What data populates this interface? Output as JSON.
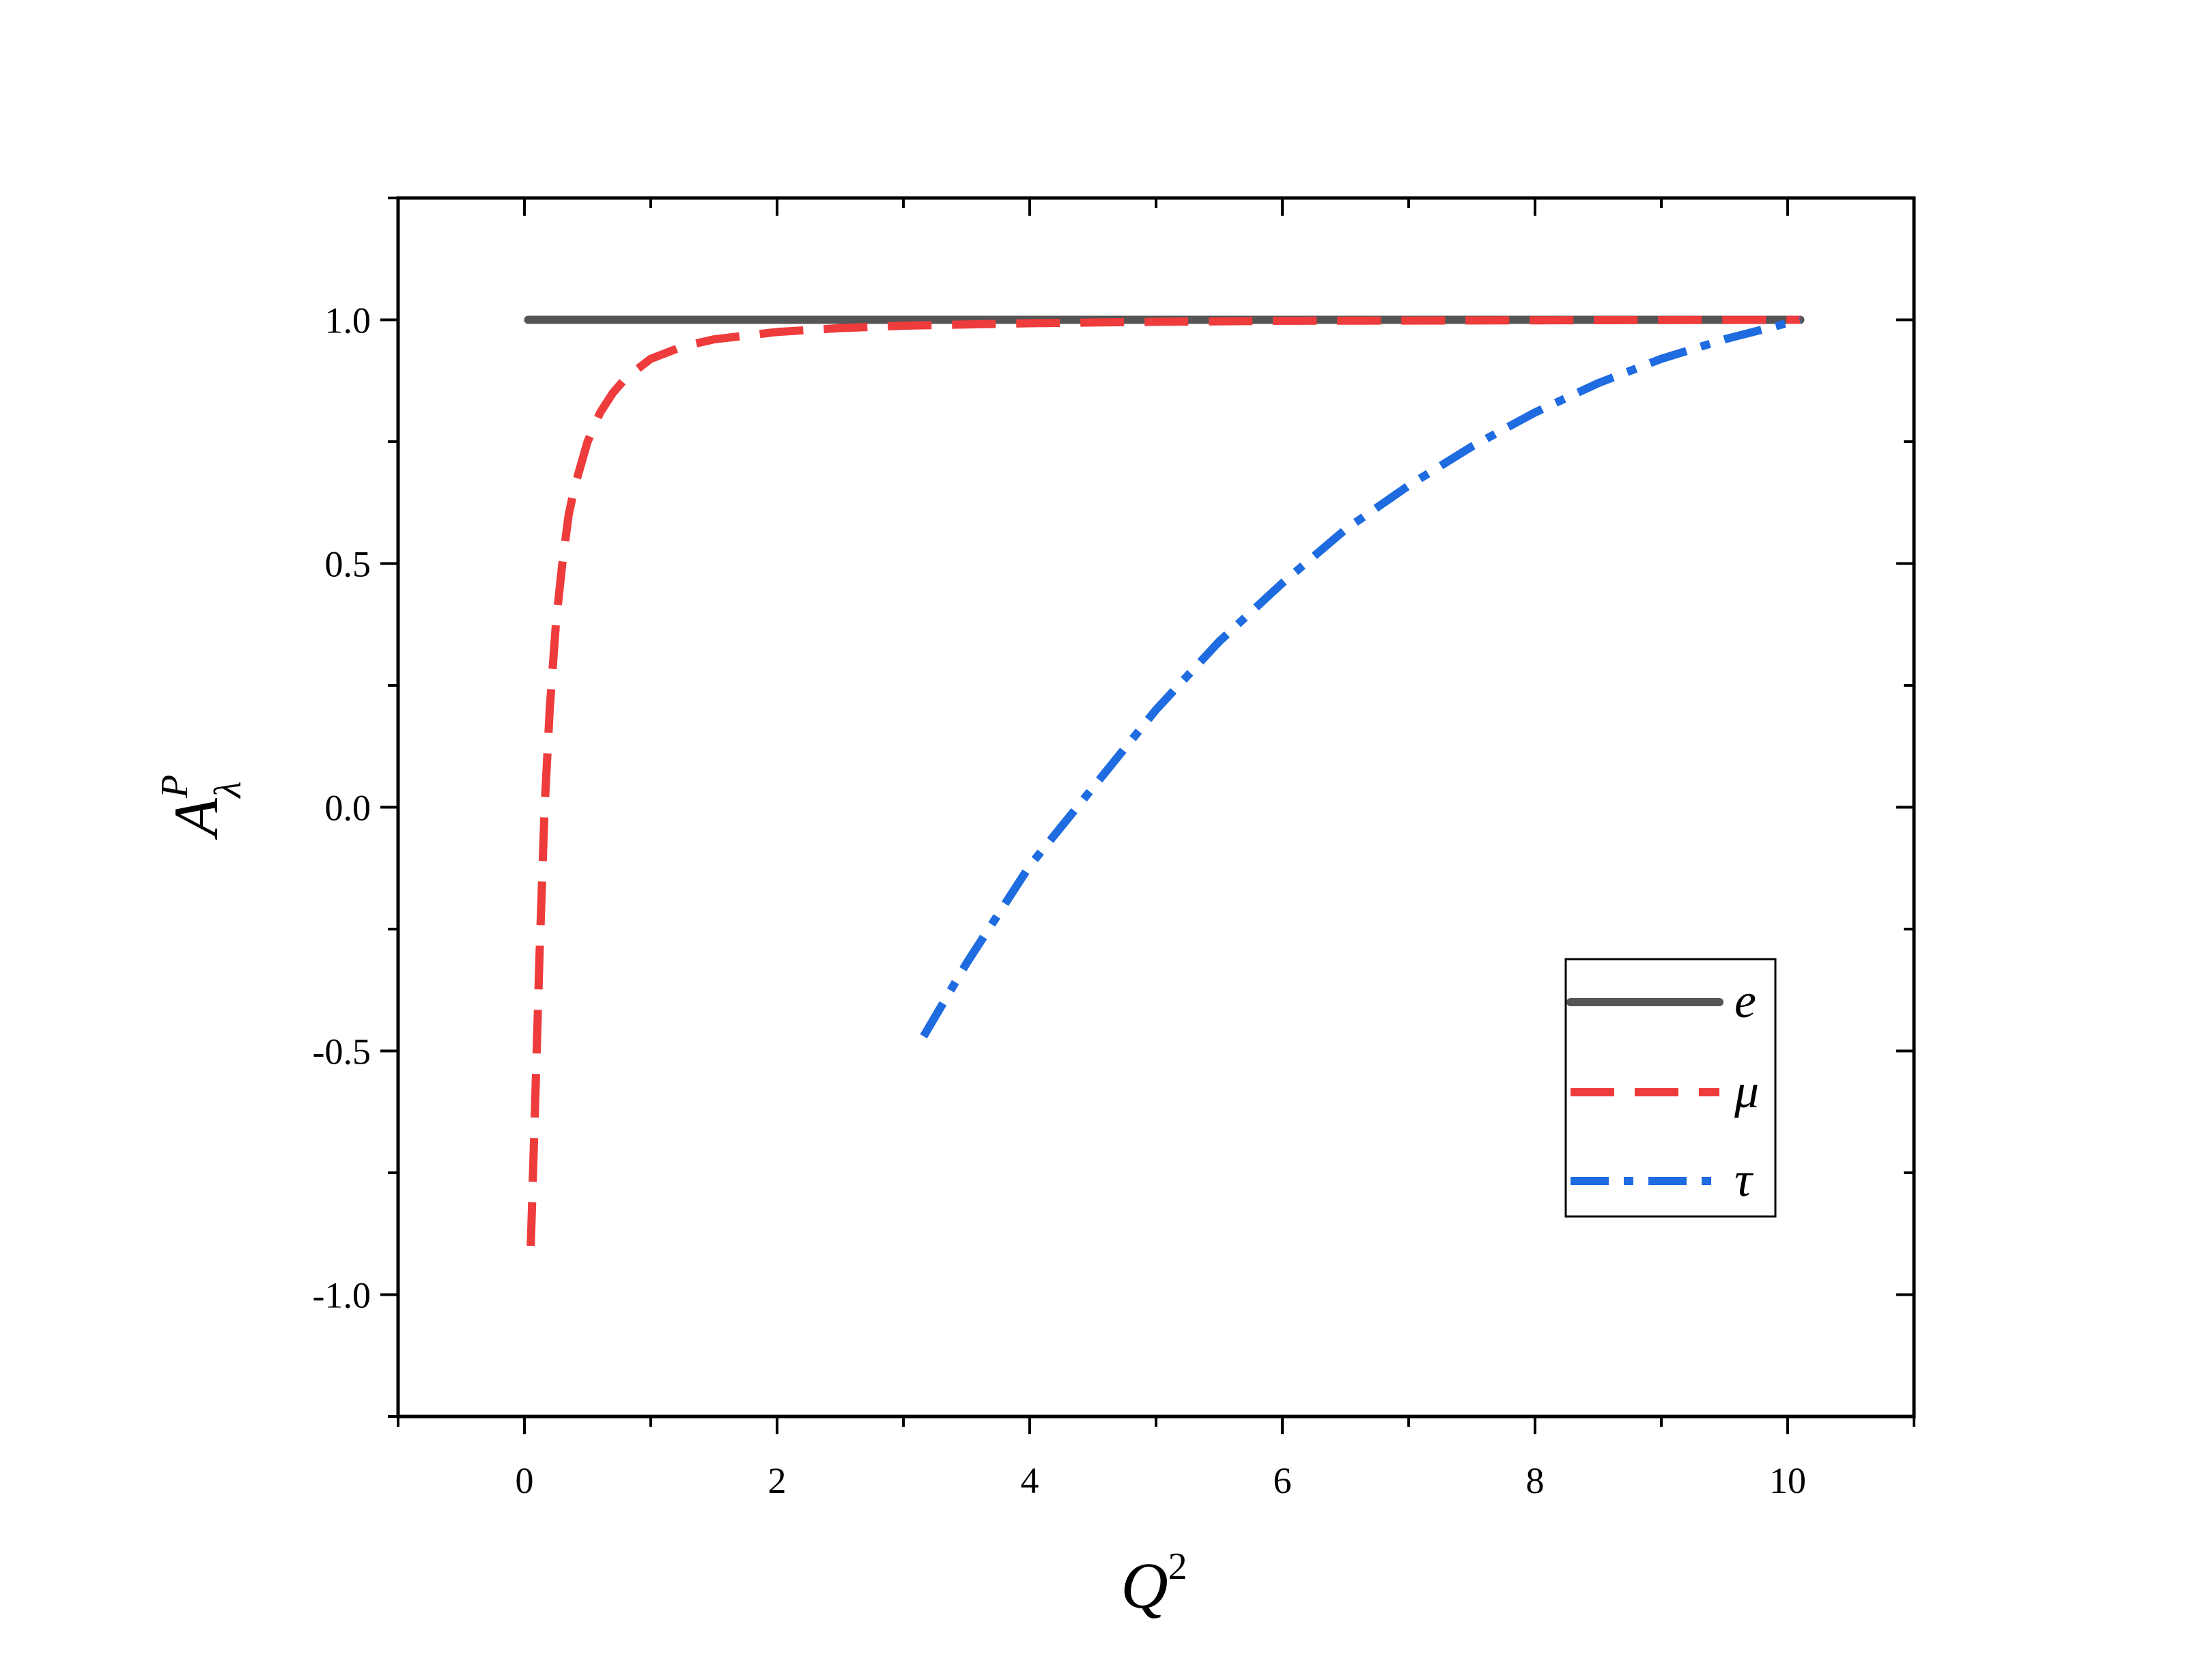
{
  "chart_data": {
    "type": "line",
    "xlabel": {
      "base": "Q",
      "sup": "2"
    },
    "ylabel": {
      "base": "A",
      "sup": "P",
      "sub": "λ"
    },
    "xlim": [
      -1.0,
      11.0
    ],
    "ylim": [
      -1.25,
      1.25
    ],
    "x_ticks": [
      0,
      2,
      4,
      6,
      8,
      10
    ],
    "x_tick_labels": [
      "0",
      "2",
      "4",
      "6",
      "8",
      "10"
    ],
    "y_ticks": [
      -1.0,
      -0.5,
      0.0,
      0.5,
      1.0
    ],
    "y_tick_labels": [
      "-1.0",
      "-0.5",
      "0.0",
      "0.5",
      "1.0"
    ],
    "x_minor_step": 1,
    "y_minor_step": 0.25,
    "grid": false,
    "legend_position": "bottom-right",
    "series": [
      {
        "name": "e",
        "style": "solid",
        "color": "#555555",
        "x": [
          0.03,
          10.1
        ],
        "y": [
          1.0,
          1.0
        ]
      },
      {
        "name": "μ",
        "style": "dashed",
        "color": "#ee3b3b",
        "x": [
          0.05,
          0.08,
          0.12,
          0.16,
          0.2,
          0.25,
          0.3,
          0.35,
          0.4,
          0.5,
          0.6,
          0.7,
          0.8,
          1.0,
          1.25,
          1.5,
          2.0,
          2.5,
          3.0,
          4.0,
          5.0,
          6.0,
          8.0,
          10.1
        ],
        "y": [
          -0.9,
          -0.65,
          -0.3,
          0.0,
          0.2,
          0.38,
          0.5,
          0.6,
          0.66,
          0.75,
          0.81,
          0.85,
          0.88,
          0.92,
          0.945,
          0.96,
          0.975,
          0.983,
          0.988,
          0.993,
          0.996,
          0.998,
          0.999,
          1.0
        ]
      },
      {
        "name": "τ",
        "style": "dashdot",
        "color": "#1f6be0",
        "x": [
          3.16,
          3.5,
          4.0,
          4.5,
          5.0,
          5.5,
          6.0,
          6.5,
          7.0,
          7.5,
          8.0,
          8.5,
          9.0,
          9.5,
          10.1
        ],
        "y": [
          -0.47,
          -0.32,
          -0.12,
          0.04,
          0.2,
          0.34,
          0.46,
          0.57,
          0.66,
          0.74,
          0.81,
          0.87,
          0.92,
          0.96,
          1.0
        ]
      }
    ]
  }
}
